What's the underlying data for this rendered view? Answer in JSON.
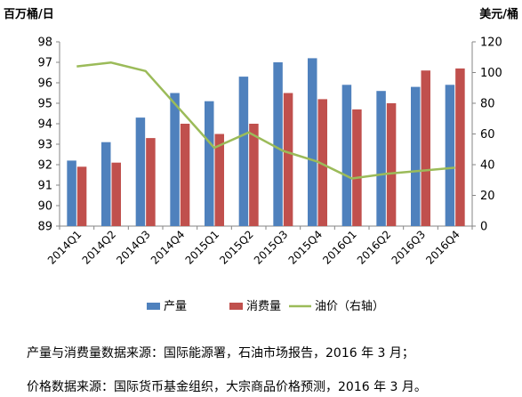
{
  "chart_data": {
    "type": "bar",
    "left_unit": "百万桶/日",
    "right_unit": "美元/桶",
    "categories": [
      "2014Q1",
      "2014Q2",
      "2014Q3",
      "2014Q4",
      "2015Q1",
      "2015Q2",
      "2015Q3",
      "2015Q4",
      "2016Q1",
      "2016Q2",
      "2016Q3",
      "2016Q4"
    ],
    "ylim": [
      89,
      98
    ],
    "y_ticks": [
      89,
      90,
      91,
      92,
      93,
      94,
      95,
      96,
      97,
      98
    ],
    "y2lim": [
      0,
      120
    ],
    "y2_ticks": [
      0,
      20,
      40,
      60,
      80,
      100,
      120
    ],
    "grid": false,
    "legend_position": "bottom",
    "series": [
      {
        "name": "产量",
        "type": "bar",
        "axis": "left",
        "color": "#4F81BD",
        "values": [
          92.2,
          93.1,
          94.3,
          95.5,
          95.1,
          96.3,
          97.0,
          97.2,
          95.9,
          95.6,
          95.8,
          95.9
        ]
      },
      {
        "name": "消费量",
        "type": "bar",
        "axis": "left",
        "color": "#C0504D",
        "values": [
          91.9,
          92.1,
          93.3,
          94.0,
          93.5,
          94.0,
          95.5,
          95.2,
          94.7,
          95.0,
          96.6,
          96.7
        ]
      },
      {
        "name": "油价（右轴）",
        "type": "line",
        "axis": "right",
        "color": "#9BBB59",
        "values": [
          104,
          106.5,
          101,
          76,
          51,
          61,
          49,
          42,
          31,
          34,
          36,
          38
        ]
      }
    ]
  },
  "notes": {
    "line1": "产量与消费量数据来源：国际能源署，石油市场报告，2016 年 3 月；",
    "line2": "价格数据来源：国际货币基金组织，大宗商品价格预测，2016 年 3 月。"
  }
}
